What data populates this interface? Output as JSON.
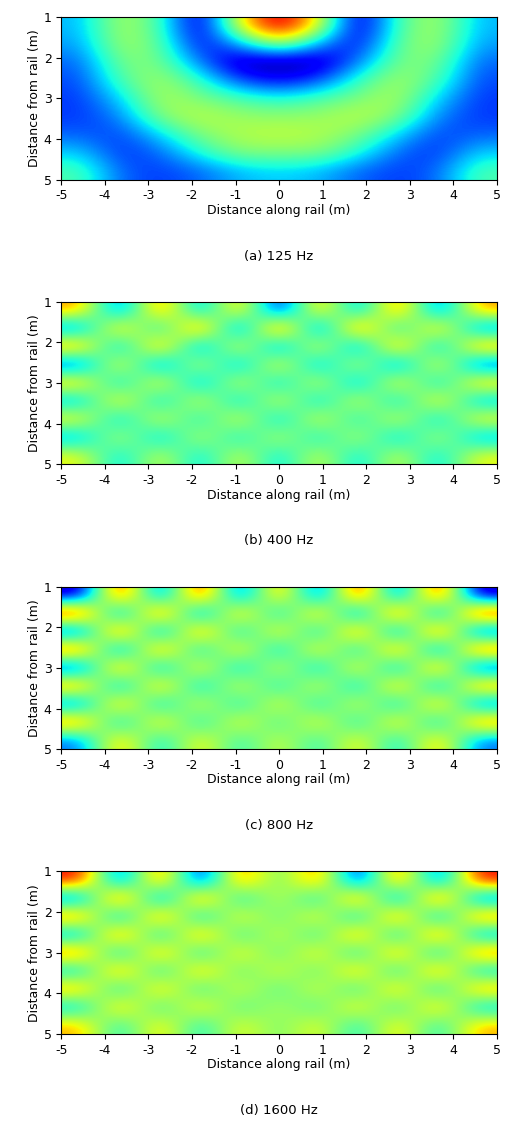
{
  "chart_data": [
    {
      "type": "heatmap",
      "title": "(a) 125 Hz",
      "x_label": "Distance along rail (m)",
      "y_label": "Distance from rail (m)",
      "xlim": [
        -5,
        5
      ],
      "ylim": [
        5,
        1
      ],
      "xticks": [
        -5,
        -4,
        -3,
        -2,
        -1,
        0,
        1,
        2,
        3,
        4,
        5
      ],
      "yticks": [
        1,
        2,
        3,
        4,
        5
      ],
      "cells": [
        [
          -0.25,
          0.22,
          0.0,
          -0.75,
          0.35,
          1.0,
          0.35,
          -0.75,
          0.0,
          0.22,
          -0.25
        ],
        [
          -0.3,
          0.2,
          0.05,
          -0.6,
          -0.3,
          0.2,
          -0.3,
          -0.6,
          0.05,
          0.2,
          -0.3
        ],
        [
          -0.4,
          0.1,
          0.1,
          -0.35,
          -0.75,
          -0.8,
          -0.75,
          -0.35,
          0.1,
          0.1,
          -0.4
        ],
        [
          -0.45,
          0.0,
          0.2,
          -0.05,
          -0.45,
          -0.6,
          -0.45,
          -0.05,
          0.2,
          0.0,
          -0.45
        ],
        [
          -0.48,
          -0.2,
          0.22,
          0.1,
          0.0,
          -0.1,
          0.0,
          0.1,
          0.22,
          -0.2,
          -0.48
        ],
        [
          -0.48,
          -0.35,
          0.12,
          0.25,
          0.16,
          0.15,
          0.16,
          0.25,
          0.12,
          -0.35,
          -0.48
        ],
        [
          -0.4,
          -0.47,
          -0.2,
          0.1,
          0.22,
          0.25,
          0.22,
          0.1,
          -0.2,
          -0.47,
          -0.4
        ],
        [
          -0.2,
          -0.5,
          -0.4,
          -0.1,
          0.12,
          0.1,
          0.12,
          -0.1,
          -0.4,
          -0.5,
          -0.2
        ],
        [
          0.0,
          -0.4,
          -0.48,
          -0.4,
          -0.25,
          -0.2,
          -0.25,
          -0.4,
          -0.48,
          -0.4,
          0.0
        ]
      ]
    },
    {
      "type": "heatmap",
      "title": "(b) 400 Hz",
      "x_label": "Distance along rail (m)",
      "y_label": "Distance from rail (m)",
      "xlim": [
        -5,
        5
      ],
      "ylim": [
        5,
        1
      ],
      "xticks": [
        -5,
        -4,
        -3,
        -2,
        -1,
        0,
        1,
        2,
        3,
        4,
        5
      ],
      "yticks": [
        1,
        2,
        3,
        4,
        5
      ],
      "cells": [
        [
          0.5,
          -0.6,
          0.7,
          -0.5,
          0.6,
          -0.8,
          0.6,
          -0.5,
          0.7,
          -0.6,
          0.5
        ],
        [
          -0.5,
          0.6,
          -0.4,
          0.8,
          -0.7,
          0.9,
          -0.7,
          0.8,
          -0.4,
          0.6,
          -0.5
        ],
        [
          0.6,
          -0.5,
          0.7,
          -0.6,
          0.5,
          -0.6,
          0.5,
          -0.6,
          0.7,
          -0.5,
          0.6
        ],
        [
          -0.6,
          0.5,
          -0.6,
          0.4,
          -0.5,
          0.5,
          -0.5,
          0.4,
          -0.6,
          0.5,
          -0.6
        ],
        [
          0.5,
          -0.4,
          0.5,
          -0.5,
          0.4,
          -0.4,
          0.4,
          -0.5,
          0.5,
          -0.4,
          0.5
        ],
        [
          -0.4,
          0.5,
          -0.4,
          0.4,
          -0.4,
          0.4,
          -0.4,
          0.4,
          -0.4,
          0.5,
          -0.4
        ],
        [
          0.4,
          -0.4,
          0.4,
          -0.3,
          0.4,
          -0.4,
          0.4,
          -0.3,
          0.4,
          -0.4,
          0.4
        ],
        [
          -0.4,
          0.3,
          -0.4,
          0.3,
          -0.3,
          0.3,
          -0.3,
          0.3,
          -0.4,
          0.3,
          -0.4
        ],
        [
          0.3,
          -0.3,
          0.3,
          -0.3,
          0.3,
          -0.3,
          0.3,
          -0.3,
          0.3,
          -0.3,
          0.3
        ]
      ]
    },
    {
      "type": "heatmap",
      "title": "(c) 800 Hz",
      "x_label": "Distance along rail (m)",
      "y_label": "Distance from rail (m)",
      "xlim": [
        -5,
        5
      ],
      "ylim": [
        5,
        1
      ],
      "xticks": [
        -5,
        -4,
        -3,
        -2,
        -1,
        0,
        1,
        2,
        3,
        4,
        5
      ],
      "yticks": [
        1,
        2,
        3,
        4,
        5
      ],
      "cells": [
        [
          -0.7,
          0.7,
          -0.6,
          0.7,
          -0.6,
          0.5,
          -0.6,
          0.7,
          -0.6,
          0.7,
          -0.7
        ],
        [
          0.7,
          -0.6,
          0.7,
          -0.6,
          0.5,
          -0.4,
          0.5,
          -0.6,
          0.7,
          -0.6,
          0.7
        ],
        [
          -0.6,
          0.7,
          -0.6,
          0.6,
          -0.4,
          0.4,
          -0.4,
          0.6,
          -0.6,
          0.7,
          -0.6
        ],
        [
          0.6,
          -0.6,
          0.6,
          -0.4,
          0.4,
          -0.4,
          0.4,
          -0.4,
          0.6,
          -0.6,
          0.6
        ],
        [
          -0.6,
          0.6,
          -0.5,
          0.4,
          -0.4,
          0.3,
          -0.4,
          0.4,
          -0.5,
          0.6,
          -0.6
        ],
        [
          0.5,
          -0.5,
          0.5,
          -0.4,
          0.3,
          -0.3,
          0.3,
          -0.4,
          0.5,
          -0.5,
          0.5
        ],
        [
          -0.5,
          0.5,
          -0.4,
          0.3,
          -0.3,
          0.3,
          -0.3,
          0.3,
          -0.4,
          0.5,
          -0.5
        ],
        [
          0.5,
          -0.4,
          0.4,
          -0.3,
          0.3,
          -0.2,
          0.3,
          -0.3,
          0.4,
          -0.4,
          0.5
        ],
        [
          -0.4,
          0.4,
          -0.3,
          0.3,
          -0.2,
          0.2,
          -0.2,
          0.3,
          -0.3,
          0.4,
          -0.4
        ]
      ]
    },
    {
      "type": "heatmap",
      "title": "(d) 1600 Hz",
      "x_label": "Distance along rail (m)",
      "y_label": "Distance from rail (m)",
      "xlim": [
        -5,
        5
      ],
      "ylim": [
        5,
        1
      ],
      "xticks": [
        -5,
        -4,
        -3,
        -2,
        -1,
        0,
        1,
        2,
        3,
        4,
        5
      ],
      "yticks": [
        1,
        2,
        3,
        4,
        5
      ],
      "cells": [
        [
          0.6,
          -0.7,
          0.6,
          -0.8,
          0.5,
          -0.2,
          0.5,
          -0.8,
          0.6,
          -0.7,
          0.6
        ],
        [
          -0.6,
          0.7,
          -0.7,
          0.6,
          -0.4,
          0.2,
          -0.4,
          0.6,
          -0.7,
          0.7,
          -0.6
        ],
        [
          0.5,
          -0.6,
          0.6,
          -0.5,
          0.3,
          -0.2,
          0.3,
          -0.5,
          0.6,
          -0.6,
          0.5
        ],
        [
          -0.5,
          0.6,
          -0.5,
          0.5,
          -0.3,
          0.2,
          -0.3,
          0.5,
          -0.5,
          0.6,
          -0.5
        ],
        [
          0.5,
          -0.5,
          0.5,
          -0.4,
          0.3,
          -0.2,
          0.3,
          -0.4,
          0.5,
          -0.5,
          0.5
        ],
        [
          -0.4,
          0.5,
          -0.4,
          0.4,
          -0.2,
          0.2,
          -0.2,
          0.4,
          -0.4,
          0.5,
          -0.4
        ],
        [
          0.4,
          -0.4,
          0.4,
          -0.3,
          0.2,
          -0.2,
          0.2,
          -0.3,
          0.4,
          -0.4,
          0.4
        ],
        [
          -0.4,
          0.4,
          -0.3,
          0.3,
          -0.2,
          0.1,
          -0.2,
          0.3,
          -0.3,
          0.4,
          -0.4
        ],
        [
          0.3,
          -0.3,
          0.3,
          -0.3,
          0.2,
          -0.1,
          0.2,
          -0.3,
          0.3,
          -0.3,
          0.3
        ]
      ]
    }
  ]
}
